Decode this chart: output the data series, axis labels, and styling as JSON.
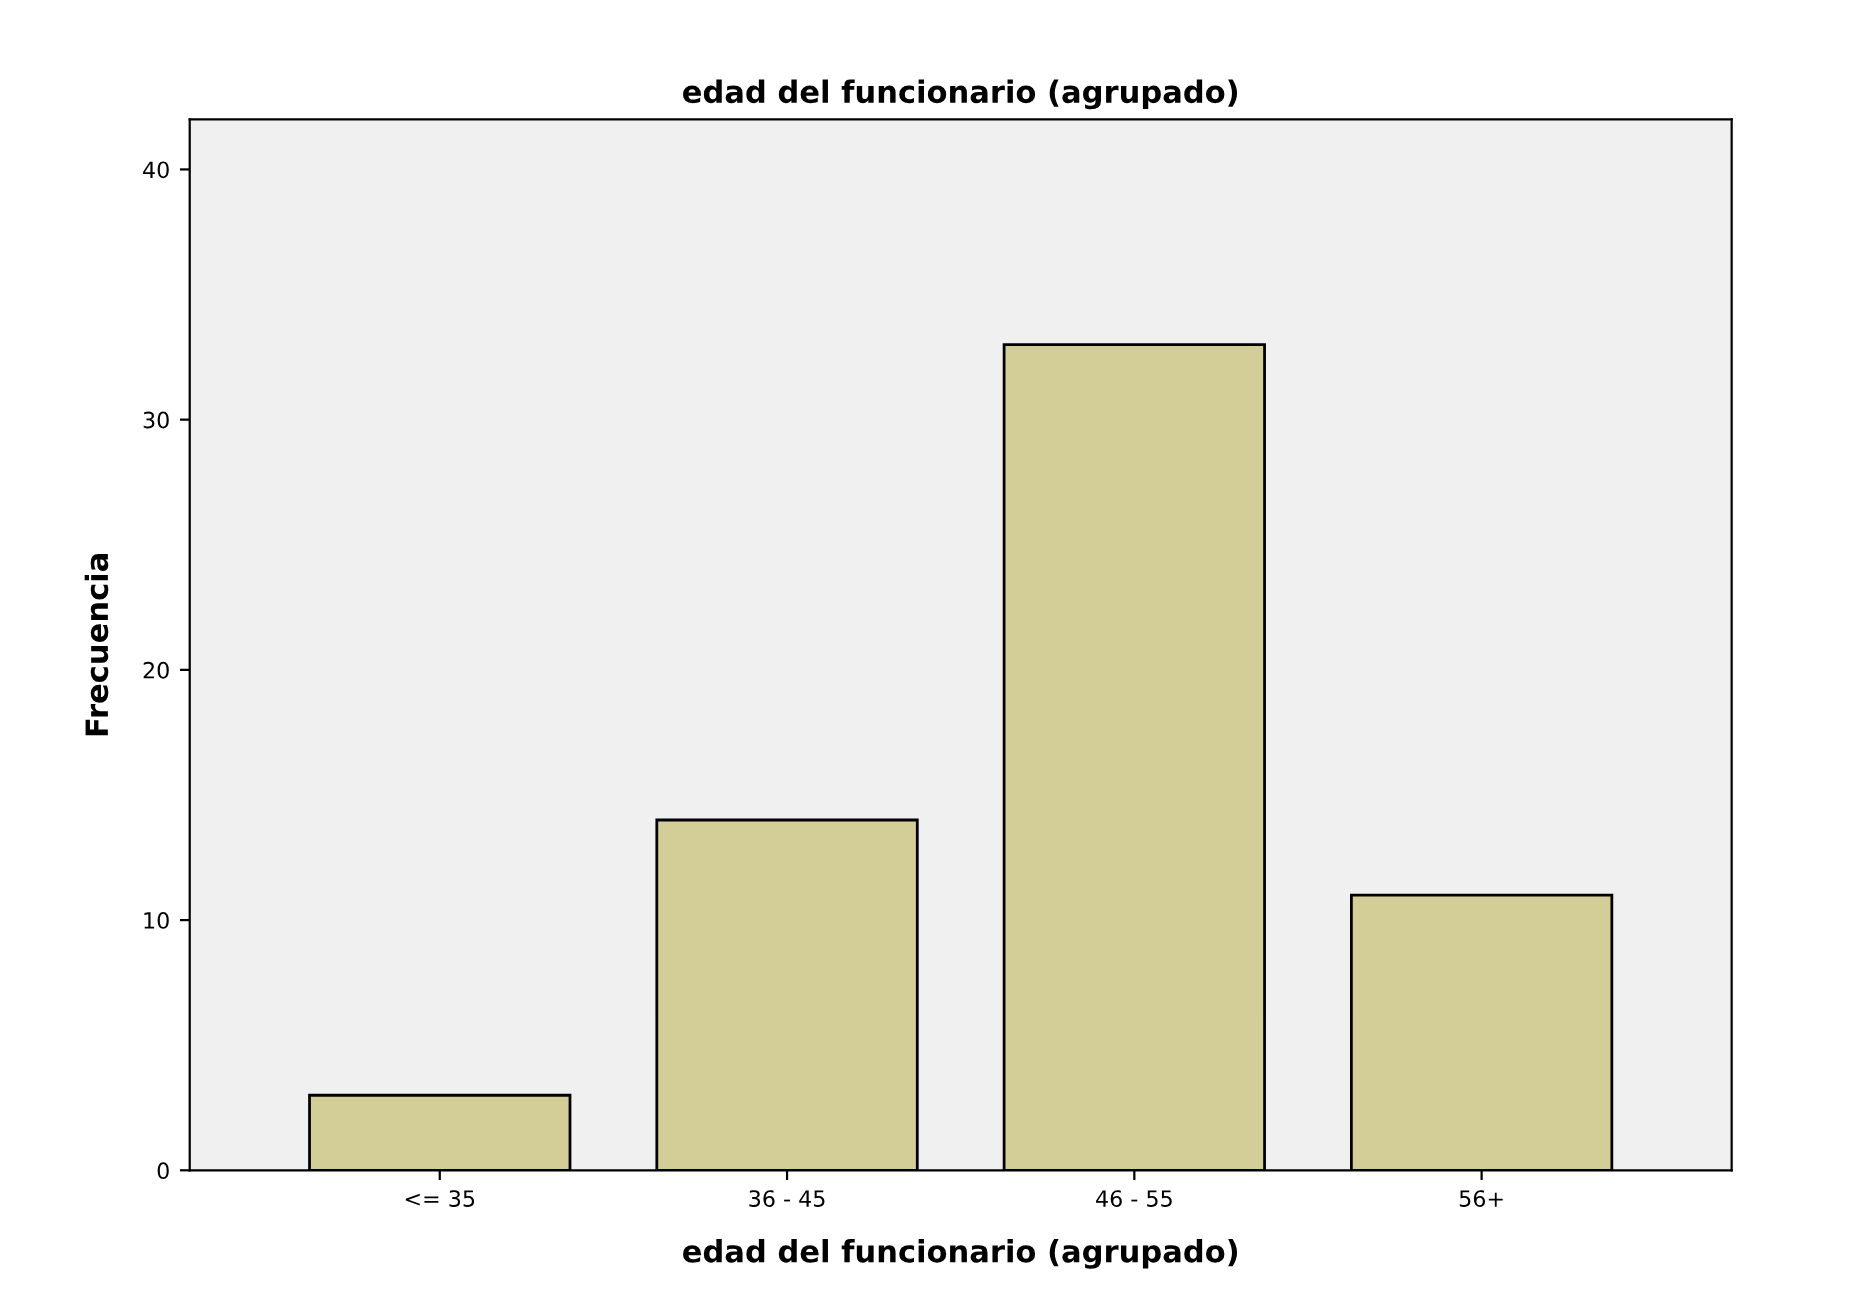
{
  "chart_data": {
    "type": "bar",
    "title": "edad del funcionario (agrupado)",
    "xlabel": "edad del funcionario (agrupado)",
    "ylabel": "Frecuencia",
    "categories": [
      "<= 35",
      "36 - 45",
      "46 - 55",
      "56+"
    ],
    "values": [
      3,
      14,
      33,
      11
    ],
    "color": "#d3ce97",
    "ylim": [
      0,
      42
    ],
    "yticks": [
      0,
      10,
      20,
      30,
      40
    ],
    "grid": false,
    "legend": false
  }
}
